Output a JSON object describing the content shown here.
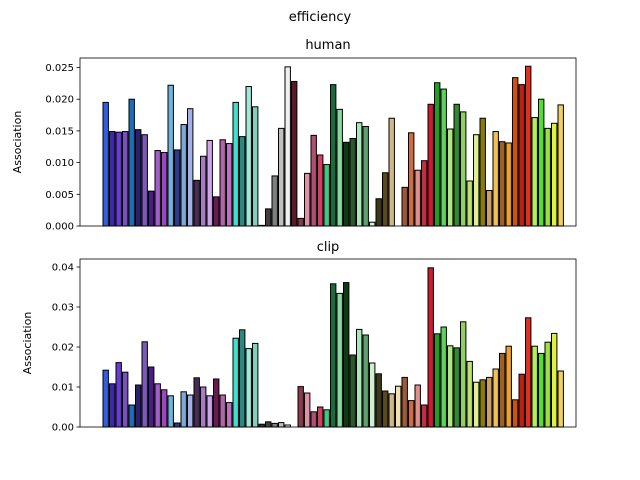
{
  "chart_data": {
    "suptitle": "efficiency",
    "colors": [
      "#2f5fe0",
      "#3a2aa8",
      "#6a3bd6",
      "#7a4fc0",
      "#1f6fb8",
      "#2a1f70",
      "#7b59b8",
      "#4a1c86",
      "#a060c8",
      "#9a47c0",
      "#6fb4e0",
      "#2a3a8c",
      "#7ea8d6",
      "#a4b0e8",
      "#4a2c52",
      "#a87cc4",
      "#cfa4e8",
      "#6a1a52",
      "#b067a8",
      "#c070c0",
      "#40e0d0",
      "#2a8a80",
      "#a0e8d8",
      "#80d0c0",
      "#303030",
      "#404040",
      "#808080",
      "#c0c0c0",
      "#f0f0f0",
      "#5a1a2a",
      "#8a3a4a",
      "#e090a8",
      "#b05070",
      "#d04060",
      "#40c880",
      "#1a6a3a",
      "#8ad8a0",
      "#103a10",
      "#2a5a2a",
      "#a8e8b8",
      "#60a070",
      "#d0f0d0",
      "#3a3a1a",
      "#5a4a20",
      "#d0b88a",
      "#f0e0b0",
      "#a0583a",
      "#d06a40",
      "#e0908a",
      "#c03040",
      "#d01830",
      "#20a020",
      "#60d060",
      "#b0e880",
      "#308a30",
      "#90d060",
      "#c0e070",
      "#e0f090",
      "#8a7a10",
      "#d0a060",
      "#f0c050",
      "#a06020",
      "#f0a030",
      "#d05010",
      "#c02010",
      "#e03020",
      "#b0f060",
      "#50e030",
      "#a0e040",
      "#e0f040",
      "#f0d060",
      "#f09040",
      "#f0b040"
    ],
    "charts": [
      {
        "title": "human",
        "ylabel": "Association",
        "ylim": [
          0,
          0.0265
        ],
        "yticks": [
          "0.000",
          "0.005",
          "0.010",
          "0.015",
          "0.020",
          "0.025"
        ],
        "ytick_values": [
          0,
          0.005,
          0.01,
          0.015,
          0.02,
          0.025
        ],
        "values": [
          0.0195,
          0.0149,
          0.0148,
          0.0149,
          0.02,
          0.0152,
          0.0144,
          0.0055,
          0.0119,
          0.0116,
          0.0222,
          0.012,
          0.016,
          0.0185,
          0.0072,
          0.011,
          0.0135,
          0.0046,
          0.0136,
          0.013,
          0.0195,
          0.0141,
          0.022,
          0.0188,
          0.0001,
          0.0027,
          0.0079,
          0.0154,
          0.0251,
          0.0228,
          0.0012,
          0.0083,
          0.0143,
          0.0112,
          0.0097,
          0.0223,
          0.0184,
          0.0132,
          0.0138,
          0.0163,
          0.0157,
          0.0006,
          0.0043,
          0.0084,
          0.017,
          0.0,
          0.0061,
          0.0147,
          0.0088,
          0.0103,
          0.0192,
          0.0226,
          0.0216,
          0.0153,
          0.0192,
          0.018,
          0.0071,
          0.0144,
          0.017,
          0.0056,
          0.0149,
          0.0133,
          0.0131,
          0.0234,
          0.0223,
          0.0252,
          0.0171,
          0.02,
          0.0154,
          0.0162,
          0.0191
        ]
      },
      {
        "title": "clip",
        "ylabel": "Association",
        "ylim": [
          0,
          0.042
        ],
        "yticks": [
          "0.00",
          "0.01",
          "0.02",
          "0.03",
          "0.04"
        ],
        "ytick_values": [
          0,
          0.01,
          0.02,
          0.03,
          0.04
        ],
        "values": [
          0.0142,
          0.0108,
          0.0161,
          0.0137,
          0.0055,
          0.0105,
          0.0213,
          0.015,
          0.0108,
          0.0093,
          0.0078,
          0.001,
          0.0088,
          0.008,
          0.0123,
          0.01,
          0.0078,
          0.012,
          0.008,
          0.0061,
          0.0222,
          0.0243,
          0.0196,
          0.0209,
          0.0007,
          0.0013,
          0.0009,
          0.0011,
          0.0005,
          0.0,
          0.0101,
          0.0085,
          0.0038,
          0.005,
          0.0043,
          0.0358,
          0.0334,
          0.0361,
          0.018,
          0.0244,
          0.023,
          0.016,
          0.0133,
          0.009,
          0.0083,
          0.0102,
          0.0124,
          0.0066,
          0.0105,
          0.0055,
          0.0398,
          0.0233,
          0.025,
          0.0203,
          0.0198,
          0.0263,
          0.0164,
          0.0112,
          0.0118,
          0.0124,
          0.0145,
          0.0184,
          0.0202,
          0.0068,
          0.0132,
          0.0273,
          0.0202,
          0.0184,
          0.0212,
          0.0234,
          0.014
        ]
      }
    ]
  }
}
